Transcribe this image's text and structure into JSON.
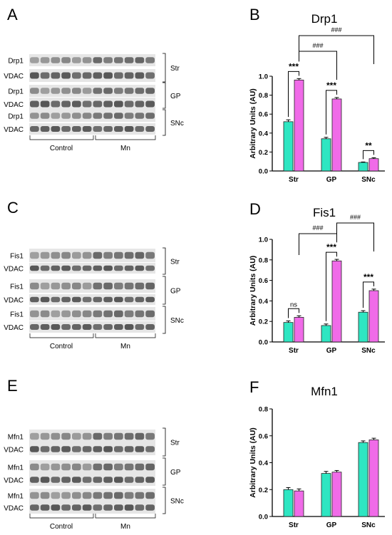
{
  "figure": {
    "panels": [
      {
        "letter": "A"
      },
      {
        "letter": "B"
      },
      {
        "letter": "C"
      },
      {
        "letter": "D"
      },
      {
        "letter": "E"
      },
      {
        "letter": "F"
      }
    ],
    "blots": [
      {
        "id": "A",
        "rows": [
          {
            "label": "Drp1",
            "region": "Str"
          },
          {
            "label": "VDAC"
          },
          {
            "label": "Drp1",
            "region": "GP"
          },
          {
            "label": "VDAC"
          },
          {
            "label": "Drp1",
            "region": "SNc"
          },
          {
            "label": "VDAC"
          }
        ],
        "groups": [
          "Control",
          "Mn"
        ]
      },
      {
        "id": "C",
        "rows": [
          {
            "label": "Fis1",
            "region": "Str"
          },
          {
            "label": "VDAC"
          },
          {
            "label": "Fis1",
            "region": "GP"
          },
          {
            "label": "VDAC"
          },
          {
            "label": "Fis1",
            "region": "SNc"
          },
          {
            "label": "VDAC"
          }
        ],
        "groups": [
          "Control",
          "Mn"
        ]
      },
      {
        "id": "E",
        "rows": [
          {
            "label": "Mfn1",
            "region": "Str"
          },
          {
            "label": "VDAC"
          },
          {
            "label": "Mfn1",
            "region": "GP"
          },
          {
            "label": "VDAC"
          },
          {
            "label": "Mfn1",
            "region": "SNc"
          },
          {
            "label": "VDAC"
          }
        ],
        "groups": [
          "Control",
          "Mn"
        ]
      }
    ]
  },
  "colors": {
    "control": "#2ee6c2",
    "mn": "#f06be8"
  },
  "chart_data": [
    {
      "type": "bar",
      "title": "Drp1",
      "ylabel": "Arbitrary Units (AU)",
      "categories": [
        "Str",
        "GP",
        "SNc"
      ],
      "ylim": [
        0,
        1.0
      ],
      "yticks": [
        "0.0",
        "0.2",
        "0.4",
        "0.6",
        "0.8",
        "1.0"
      ],
      "series": [
        {
          "values": [
            0.52,
            0.34,
            0.09
          ],
          "errors": [
            0.02,
            0.015,
            0.005
          ]
        },
        {
          "values": [
            0.96,
            0.76,
            0.13
          ],
          "errors": [
            0.015,
            0.015,
            0.01
          ]
        }
      ],
      "annotations": [
        {
          "label": "***",
          "kind": "within",
          "category": 0
        },
        {
          "label": "***",
          "kind": "within",
          "category": 1
        },
        {
          "label": "**",
          "kind": "within",
          "category": 2
        },
        {
          "label": "###",
          "kind": "between",
          "from": 0,
          "to": 1
        },
        {
          "label": "###",
          "kind": "between",
          "from": 0,
          "to": 2
        }
      ]
    },
    {
      "type": "bar",
      "title": "Fis1",
      "ylabel": "Arbitrary Units (AU)",
      "categories": [
        "Str",
        "GP",
        "SNc"
      ],
      "ylim": [
        0,
        1.0
      ],
      "yticks": [
        "0.0",
        "0.2",
        "0.4",
        "0.6",
        "0.8",
        "1.0"
      ],
      "series": [
        {
          "values": [
            0.19,
            0.16,
            0.29
          ],
          "errors": [
            0.015,
            0.015,
            0.015
          ]
        },
        {
          "values": [
            0.24,
            0.79,
            0.5
          ],
          "errors": [
            0.015,
            0.015,
            0.015
          ]
        }
      ],
      "annotations": [
        {
          "label": "ns",
          "kind": "within",
          "category": 0
        },
        {
          "label": "***",
          "kind": "within",
          "category": 1
        },
        {
          "label": "***",
          "kind": "within",
          "category": 2
        },
        {
          "label": "###",
          "kind": "between",
          "from": 0,
          "to": 1
        },
        {
          "label": "###",
          "kind": "between",
          "from": 1,
          "to": 2
        }
      ]
    },
    {
      "type": "bar",
      "title": "Mfn1",
      "ylabel": "Arbitrary Units (AU)",
      "categories": [
        "Str",
        "GP",
        "SNc"
      ],
      "ylim": [
        0,
        0.8
      ],
      "yticks": [
        "0.0",
        "0.2",
        "0.4",
        "0.6",
        "0.8"
      ],
      "series": [
        {
          "values": [
            0.2,
            0.32,
            0.55
          ],
          "errors": [
            0.015,
            0.015,
            0.012
          ]
        },
        {
          "values": [
            0.19,
            0.33,
            0.57
          ],
          "errors": [
            0.015,
            0.012,
            0.012
          ]
        }
      ],
      "annotations": []
    }
  ]
}
